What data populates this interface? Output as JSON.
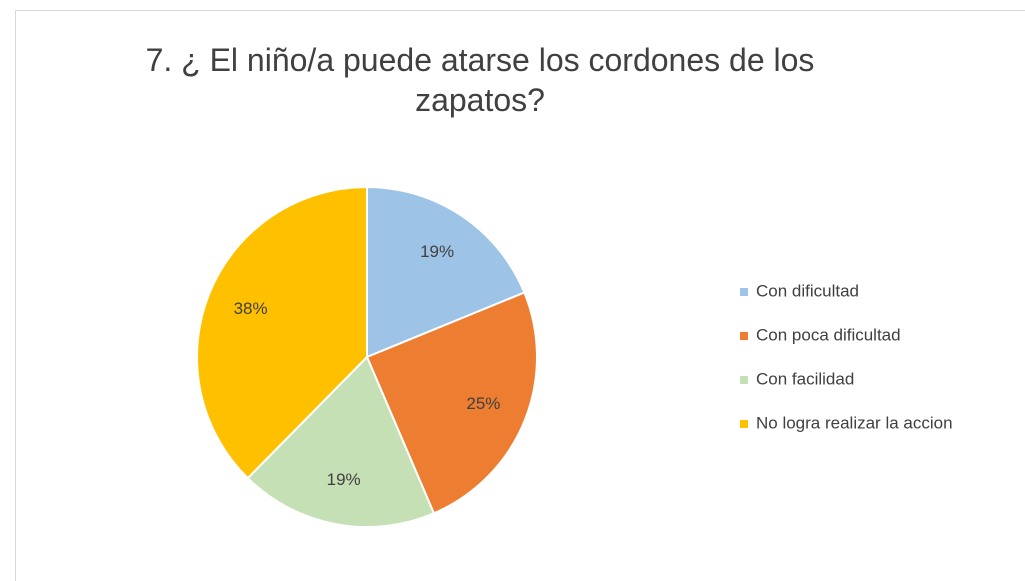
{
  "chart_data": {
    "type": "pie",
    "title": "7. ¿ El niño/a puede atarse los cordones de los zapatos?",
    "categories": [
      "Con dificultad",
      "Con poca dificultad",
      "Con facilidad",
      "No logra realizar la accion"
    ],
    "values": [
      19,
      25,
      19,
      38
    ],
    "value_labels": [
      "19%",
      "25%",
      "19%",
      "38%"
    ],
    "colors": [
      "#9dc3e6",
      "#ed7d31",
      "#c5e0b4",
      "#ffc000"
    ],
    "legend": "right"
  }
}
